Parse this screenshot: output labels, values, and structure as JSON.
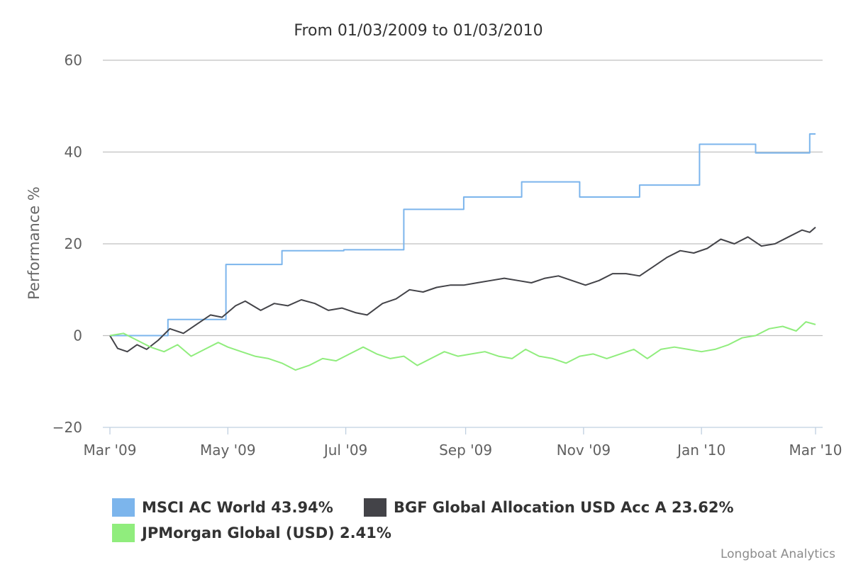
{
  "chart_data": {
    "type": "line",
    "title": "From 01/03/2009 to 01/03/2010",
    "ylabel": "Performance %",
    "xlabel": "",
    "ylim": [
      -20,
      60
    ],
    "yticks": [
      -20,
      0,
      20,
      40,
      60
    ],
    "xticks": [
      "Mar '09",
      "May '09",
      "Jul '09",
      "Sep '09",
      "Nov '09",
      "Jan '10",
      "Mar '10"
    ],
    "xlim": [
      "2009-03-01",
      "2010-03-01"
    ],
    "grid": true,
    "legend_position": "bottom",
    "series": [
      {
        "name": "MSCI AC World 43.94%",
        "color": "#7cb5ec",
        "points": [
          [
            "2009-03-01",
            0
          ],
          [
            "2009-03-31",
            0
          ],
          [
            "2009-03-31",
            3.5
          ],
          [
            "2009-04-30",
            3.5
          ],
          [
            "2009-04-30",
            15.5
          ],
          [
            "2009-05-29",
            15.5
          ],
          [
            "2009-05-29",
            18.5
          ],
          [
            "2009-06-30",
            18.5
          ],
          [
            "2009-06-30",
            18.7
          ],
          [
            "2009-07-31",
            18.7
          ],
          [
            "2009-07-31",
            27.5
          ],
          [
            "2009-08-31",
            27.5
          ],
          [
            "2009-08-31",
            30.2
          ],
          [
            "2009-09-30",
            30.2
          ],
          [
            "2009-09-30",
            33.5
          ],
          [
            "2009-10-30",
            33.5
          ],
          [
            "2009-10-30",
            30.2
          ],
          [
            "2009-11-30",
            30.2
          ],
          [
            "2009-11-30",
            32.8
          ],
          [
            "2009-12-31",
            32.8
          ],
          [
            "2009-12-31",
            41.7
          ],
          [
            "2010-01-29",
            41.7
          ],
          [
            "2010-01-29",
            39.8
          ],
          [
            "2010-02-26",
            39.8
          ],
          [
            "2010-02-26",
            43.94
          ],
          [
            "2010-03-01",
            43.94
          ]
        ]
      },
      {
        "name": "BGF Global Allocation USD Acc A 23.62%",
        "color": "#434348",
        "points": [
          [
            "2009-03-01",
            0
          ],
          [
            "2009-03-05",
            -2.8
          ],
          [
            "2009-03-10",
            -3.5
          ],
          [
            "2009-03-15",
            -2.0
          ],
          [
            "2009-03-20",
            -3.0
          ],
          [
            "2009-03-26",
            -1.0
          ],
          [
            "2009-04-01",
            1.5
          ],
          [
            "2009-04-08",
            0.5
          ],
          [
            "2009-04-15",
            2.5
          ],
          [
            "2009-04-22",
            4.5
          ],
          [
            "2009-04-28",
            4.0
          ],
          [
            "2009-05-05",
            6.5
          ],
          [
            "2009-05-10",
            7.5
          ],
          [
            "2009-05-18",
            5.5
          ],
          [
            "2009-05-25",
            7.0
          ],
          [
            "2009-06-01",
            6.5
          ],
          [
            "2009-06-08",
            7.8
          ],
          [
            "2009-06-15",
            7.0
          ],
          [
            "2009-06-22",
            5.5
          ],
          [
            "2009-06-29",
            6.0
          ],
          [
            "2009-07-06",
            5.0
          ],
          [
            "2009-07-12",
            4.5
          ],
          [
            "2009-07-20",
            7.0
          ],
          [
            "2009-07-27",
            8.0
          ],
          [
            "2009-08-03",
            10.0
          ],
          [
            "2009-08-10",
            9.5
          ],
          [
            "2009-08-17",
            10.5
          ],
          [
            "2009-08-24",
            11.0
          ],
          [
            "2009-08-31",
            11.0
          ],
          [
            "2009-09-07",
            11.5
          ],
          [
            "2009-09-14",
            12.0
          ],
          [
            "2009-09-21",
            12.5
          ],
          [
            "2009-09-28",
            12.0
          ],
          [
            "2009-10-05",
            11.5
          ],
          [
            "2009-10-12",
            12.5
          ],
          [
            "2009-10-19",
            13.0
          ],
          [
            "2009-10-26",
            12.0
          ],
          [
            "2009-11-02",
            11.0
          ],
          [
            "2009-11-09",
            12.0
          ],
          [
            "2009-11-16",
            13.5
          ],
          [
            "2009-11-23",
            13.5
          ],
          [
            "2009-11-30",
            13.0
          ],
          [
            "2009-12-07",
            15.0
          ],
          [
            "2009-12-14",
            17.0
          ],
          [
            "2009-12-21",
            18.5
          ],
          [
            "2009-12-28",
            18.0
          ],
          [
            "2010-01-04",
            19.0
          ],
          [
            "2010-01-11",
            21.0
          ],
          [
            "2010-01-18",
            20.0
          ],
          [
            "2010-01-25",
            21.5
          ],
          [
            "2010-02-01",
            19.5
          ],
          [
            "2010-02-08",
            20.0
          ],
          [
            "2010-02-15",
            21.5
          ],
          [
            "2010-02-22",
            23.0
          ],
          [
            "2010-02-26",
            22.5
          ],
          [
            "2010-03-01",
            23.62
          ]
        ]
      },
      {
        "name": "JPMorgan Global (USD) 2.41%",
        "color": "#90ed7d",
        "points": [
          [
            "2009-03-01",
            0
          ],
          [
            "2009-03-08",
            0.5
          ],
          [
            "2009-03-15",
            -1.0
          ],
          [
            "2009-03-22",
            -2.5
          ],
          [
            "2009-03-29",
            -3.5
          ],
          [
            "2009-04-05",
            -2.0
          ],
          [
            "2009-04-12",
            -4.5
          ],
          [
            "2009-04-19",
            -3.0
          ],
          [
            "2009-04-26",
            -1.5
          ],
          [
            "2009-05-01",
            -2.5
          ],
          [
            "2009-05-08",
            -3.5
          ],
          [
            "2009-05-15",
            -4.5
          ],
          [
            "2009-05-22",
            -5.0
          ],
          [
            "2009-05-29",
            -6.0
          ],
          [
            "2009-06-05",
            -7.5
          ],
          [
            "2009-06-12",
            -6.5
          ],
          [
            "2009-06-19",
            -5.0
          ],
          [
            "2009-06-26",
            -5.5
          ],
          [
            "2009-07-03",
            -4.0
          ],
          [
            "2009-07-10",
            -2.5
          ],
          [
            "2009-07-17",
            -4.0
          ],
          [
            "2009-07-24",
            -5.0
          ],
          [
            "2009-07-31",
            -4.5
          ],
          [
            "2009-08-07",
            -6.5
          ],
          [
            "2009-08-14",
            -5.0
          ],
          [
            "2009-08-21",
            -3.5
          ],
          [
            "2009-08-28",
            -4.5
          ],
          [
            "2009-09-04",
            -4.0
          ],
          [
            "2009-09-11",
            -3.5
          ],
          [
            "2009-09-18",
            -4.5
          ],
          [
            "2009-09-25",
            -5.0
          ],
          [
            "2009-10-02",
            -3.0
          ],
          [
            "2009-10-09",
            -4.5
          ],
          [
            "2009-10-16",
            -5.0
          ],
          [
            "2009-10-23",
            -6.0
          ],
          [
            "2009-10-30",
            -4.5
          ],
          [
            "2009-11-06",
            -4.0
          ],
          [
            "2009-11-13",
            -5.0
          ],
          [
            "2009-11-20",
            -4.0
          ],
          [
            "2009-11-27",
            -3.0
          ],
          [
            "2009-12-04",
            -5.0
          ],
          [
            "2009-12-11",
            -3.0
          ],
          [
            "2009-12-18",
            -2.5
          ],
          [
            "2009-12-25",
            -3.0
          ],
          [
            "2010-01-01",
            -3.5
          ],
          [
            "2010-01-08",
            -3.0
          ],
          [
            "2010-01-15",
            -2.0
          ],
          [
            "2010-01-22",
            -0.5
          ],
          [
            "2010-01-29",
            0
          ],
          [
            "2010-02-05",
            1.5
          ],
          [
            "2010-02-12",
            2.0
          ],
          [
            "2010-02-19",
            1.0
          ],
          [
            "2010-02-24",
            3.0
          ],
          [
            "2010-03-01",
            2.41
          ]
        ]
      }
    ]
  },
  "credit": "Longboat Analytics"
}
